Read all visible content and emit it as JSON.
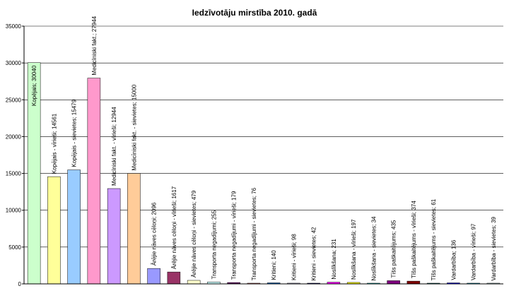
{
  "chart_data": {
    "type": "bar",
    "title": "Iedzīvotāju mirstība 2010. gadā",
    "ylim": [
      0,
      35000
    ],
    "ytick_labels": [
      "0",
      "5000",
      "10000",
      "15000",
      "20000",
      "25000",
      "30000",
      "35000"
    ],
    "grid": true,
    "categories": [
      "Kopējais",
      "Kopējais - vīrieši",
      "Kopējais - sievietes",
      "Medicīniski fakt.",
      "Medicīniski fakt. - vīrieši",
      "Medicīniski fakt. - sievietes",
      "Ārējie nāves cēloņi",
      "Ārējie nāves cēloņi - vīrieši",
      "Ārējie nāves cēloņi - sievietes",
      "Transporta negadījumi",
      "Transporta negadījumi - vīrieši",
      "Transporta negadījumi - sievietes",
      "Kritieni",
      "Kritieni - vīrieši",
      "Kritieni - sievietes",
      "Noslīkšana",
      "Noslīkšana - vīrieši",
      "Noslīkšana - sievietes",
      "Tīšs paškaitējums",
      "Tīšs paškaitējums - vīrieši",
      "Tīšs paškaitējums - sievietes",
      "Vardarbība",
      "Vardarbība - vīrieši",
      "Vardarbība - sievietes"
    ],
    "values": [
      30040,
      14561,
      15479,
      27944,
      12944,
      15000,
      2096,
      1617,
      479,
      255,
      179,
      76,
      140,
      98,
      42,
      231,
      197,
      34,
      435,
      374,
      61,
      136,
      97,
      39
    ],
    "data_labels": [
      "Kopējais; 30040",
      "Kopējais - vīrieši; 14561",
      "Kopējais - sievietes; 15479",
      "Medicīniski fakt.; 27944",
      "Medicīniski fakt. - vīrieši; 12944",
      "Medicīniski fakt. - sievietes; 15000",
      "Ārējie nāves cēloņi; 2096",
      "Ārējie nāves cēloņi - vīrieši; 1617",
      "Ārējie nāves cēloņi - sievietes; 479",
      "Transporta negadījumi; 255",
      "Transporta negadījumi - vīrieši; 179",
      "Transporta negadījumi - sievietes; 76",
      "Kritieni; 140",
      "Kritieni - vīrieši; 98",
      "Kritieni - sievietes; 42",
      "Noslīkšana; 231",
      "Noslīkšana - vīrieši; 197",
      "Noslīkšana - sievietes; 34",
      "Tīšs paškaitējums; 435",
      "Tīšs paškaitējums - vīrieši; 374",
      "Tīšs paškaitējums - sievietes; 61",
      "Vardarbība; 136",
      "Vardarbība - vīrieši; 97",
      "Vardarbība - sievietes; 39"
    ],
    "colors": [
      "#ccffcc",
      "#ffff99",
      "#99ccff",
      "#ff99cc",
      "#cc99ff",
      "#ffcc99",
      "#9999ff",
      "#993366",
      "#ffffcc",
      "#ccffff",
      "#660066",
      "#ff8080",
      "#0066cc",
      "#ccccff",
      "#000080",
      "#ff00ff",
      "#ffff00",
      "#00ffff",
      "#800080",
      "#800000",
      "#008080",
      "#0000ff",
      "#00ccff",
      "#ccffff"
    ]
  }
}
